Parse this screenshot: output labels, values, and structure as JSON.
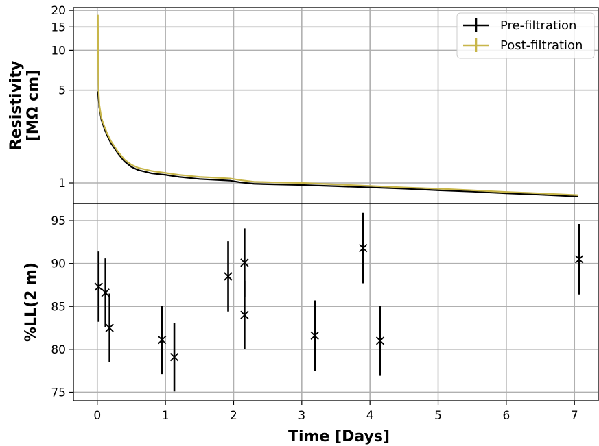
{
  "chart_data": [
    {
      "type": "line",
      "ylabel_line1": "Resistivity",
      "ylabel_line2": "[MΩ cm]",
      "yscale": "log",
      "ylim": [
        0.7,
        21
      ],
      "yticks": [
        1,
        5,
        10,
        15,
        20
      ],
      "xlim": [
        -0.35,
        7.35
      ],
      "grid": true,
      "legend": "top-right",
      "series": [
        {
          "name": "Pre-filtration",
          "color": "#000000",
          "x": [
            0.01,
            0.03,
            0.06,
            0.1,
            0.15,
            0.2,
            0.3,
            0.4,
            0.5,
            0.6,
            0.8,
            1.0,
            1.2,
            1.5,
            1.8,
            1.95,
            2.1,
            2.3,
            2.6,
            3.0,
            3.5,
            4.0,
            4.5,
            5.0,
            5.5,
            6.0,
            6.5,
            7.05
          ],
          "y": [
            4.9,
            3.7,
            3.0,
            2.6,
            2.25,
            2.0,
            1.68,
            1.45,
            1.32,
            1.25,
            1.18,
            1.15,
            1.11,
            1.07,
            1.05,
            1.04,
            1.01,
            0.985,
            0.975,
            0.965,
            0.945,
            0.925,
            0.905,
            0.88,
            0.86,
            0.835,
            0.815,
            0.79
          ]
        },
        {
          "name": "Post-filtration",
          "color": "#c8b64a",
          "x": [
            0.01,
            0.012,
            0.015,
            0.02,
            0.03,
            0.06,
            0.1,
            0.15,
            0.2,
            0.3,
            0.4,
            0.5,
            0.6,
            0.8,
            1.0,
            1.2,
            1.5,
            1.8,
            1.95,
            2.1,
            2.3,
            2.6,
            3.0,
            3.5,
            4.0,
            4.5,
            5.0,
            5.5,
            6.0,
            6.5,
            7.05
          ],
          "y": [
            18.5,
            12.0,
            7.0,
            5.0,
            3.9,
            3.1,
            2.7,
            2.33,
            2.07,
            1.73,
            1.5,
            1.37,
            1.3,
            1.23,
            1.19,
            1.15,
            1.11,
            1.09,
            1.08,
            1.05,
            1.02,
            1.01,
            1.0,
            0.975,
            0.95,
            0.925,
            0.905,
            0.88,
            0.855,
            0.835,
            0.81
          ]
        }
      ]
    },
    {
      "type": "scatter",
      "xlabel": "Time [Days]",
      "ylabel": "%LL(2 m)",
      "ylim": [
        74,
        97
      ],
      "yticks": [
        75,
        80,
        85,
        90,
        95
      ],
      "xlim": [
        -0.35,
        7.35
      ],
      "xticks": [
        0,
        1,
        2,
        3,
        4,
        5,
        6,
        7
      ],
      "grid": true,
      "points": [
        {
          "x": 0.02,
          "y": 87.3,
          "err": 4.1
        },
        {
          "x": 0.12,
          "y": 86.6,
          "err": 4.0
        },
        {
          "x": 0.18,
          "y": 82.5,
          "err": 4.0
        },
        {
          "x": 0.95,
          "y": 81.1,
          "err": 4.0
        },
        {
          "x": 1.13,
          "y": 79.1,
          "err": 4.0
        },
        {
          "x": 1.92,
          "y": 88.5,
          "err": 4.1
        },
        {
          "x": 2.16,
          "y": 90.1,
          "err": 4.0
        },
        {
          "x": 2.16,
          "y": 84.0,
          "err": 4.0
        },
        {
          "x": 3.19,
          "y": 81.6,
          "err": 4.1
        },
        {
          "x": 3.9,
          "y": 91.8,
          "err": 4.1
        },
        {
          "x": 4.15,
          "y": 81.0,
          "err": 4.1
        },
        {
          "x": 7.07,
          "y": 90.5,
          "err": 4.1
        }
      ]
    }
  ]
}
